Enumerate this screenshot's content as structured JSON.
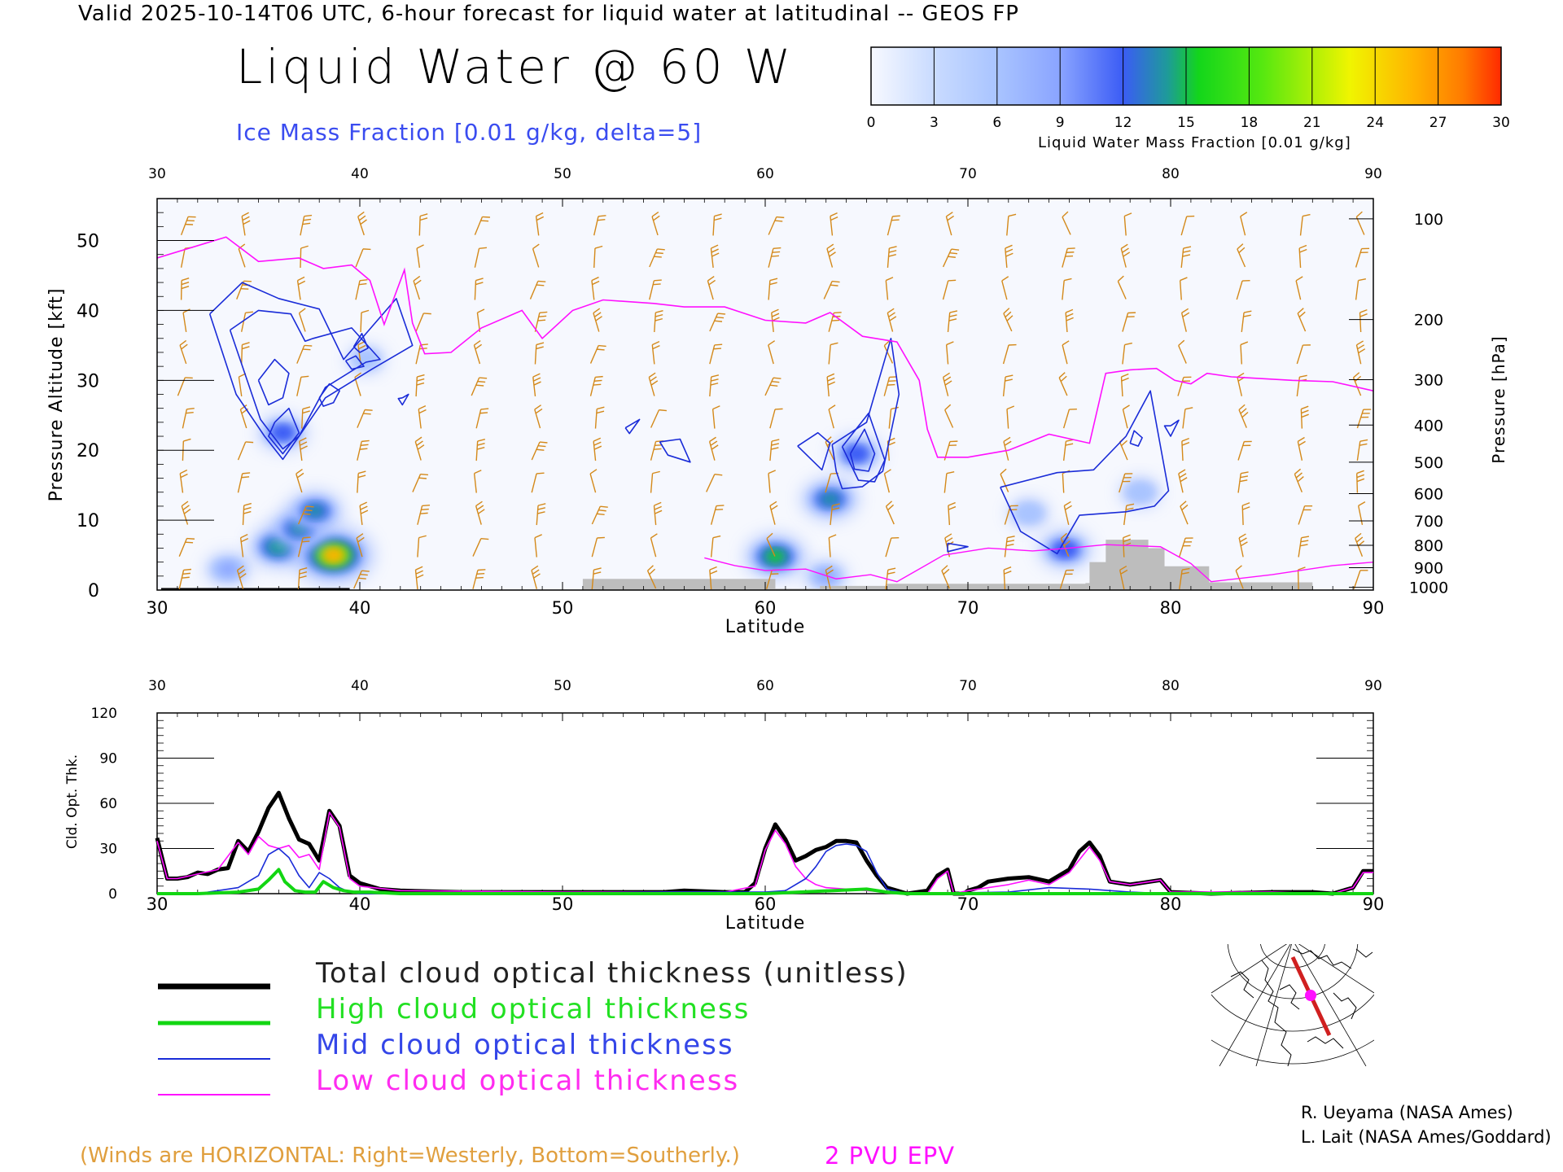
{
  "header": {
    "valid_line": "Valid 2025-10-14T06 UTC, 6-hour forecast for liquid water at latitudinal -- GEOS FP",
    "title": "Liquid Water @ 60 W",
    "subtitle": "Ice Mass Fraction [0.01 g/kg, delta=5]"
  },
  "colorbar": {
    "ticks": [
      "0",
      "3",
      "6",
      "9",
      "12",
      "15",
      "18",
      "21",
      "24",
      "27",
      "30"
    ],
    "label": "Liquid Water Mass Fraction [0.01 g/kg]",
    "colors": [
      "#f3f7ff",
      "#c9dbff",
      "#a9c4ff",
      "#8aa4ff",
      "#3b5cf5",
      "#1e9a9a",
      "#13d61b",
      "#55e810",
      "#f0f500",
      "#ffb400",
      "#ff6a00"
    ]
  },
  "colors": {
    "wind_barb": "#d4891a",
    "ice_contour": "#1a2cd8",
    "pvu": "#ff10ff",
    "terrain": "#bdbdbd",
    "total": "#000000",
    "high": "#12d612",
    "mid": "#1a2cd8",
    "low": "#ff10ff"
  },
  "chart_data": [
    {
      "type": "heatmap",
      "name": "cross-section",
      "xlabel": "Latitude",
      "ylabel": "Pressure Altitude [kft]",
      "y2label": "Pressure [hPa]",
      "xlim": [
        30,
        90
      ],
      "ylim": [
        0,
        56
      ],
      "x_ticks": [
        "30",
        "40",
        "50",
        "60",
        "70",
        "80",
        "90"
      ],
      "y_ticks": [
        "0",
        "10",
        "20",
        "30",
        "40",
        "50"
      ],
      "pressure_ticks": [
        {
          "label": "100",
          "kft": 53.1
        },
        {
          "label": "200",
          "kft": 38.7
        },
        {
          "label": "300",
          "kft": 30.1
        },
        {
          "label": "400",
          "kft": 23.6
        },
        {
          "label": "500",
          "kft": 18.3
        },
        {
          "label": "600",
          "kft": 13.8
        },
        {
          "label": "700",
          "kft": 9.9
        },
        {
          "label": "800",
          "kft": 6.4
        },
        {
          "label": "900",
          "kft": 3.2
        },
        {
          "label": "1000",
          "kft": 0.4
        }
      ],
      "liquid_water_blobs": [
        {
          "lat": 36.0,
          "kft": 6.2,
          "value": 16
        },
        {
          "lat": 38.7,
          "kft": 5.0,
          "value": 26
        },
        {
          "lat": 37.0,
          "kft": 8.8,
          "value": 15
        },
        {
          "lat": 37.8,
          "kft": 11.3,
          "value": 14
        },
        {
          "lat": 33.5,
          "kft": 3.0,
          "value": 9
        },
        {
          "lat": 36.2,
          "kft": 22.5,
          "value": 11
        },
        {
          "lat": 60.5,
          "kft": 4.8,
          "value": 17
        },
        {
          "lat": 63.2,
          "kft": 13.0,
          "value": 15
        },
        {
          "lat": 64.5,
          "kft": 19.5,
          "value": 12
        },
        {
          "lat": 74.8,
          "kft": 5.8,
          "value": 13
        },
        {
          "lat": 73.0,
          "kft": 11.0,
          "value": 7
        },
        {
          "lat": 78.5,
          "kft": 14.0,
          "value": 7
        },
        {
          "lat": 40.3,
          "kft": 33.0,
          "value": 6
        },
        {
          "lat": 63.0,
          "kft": 2.0,
          "value": 8
        }
      ],
      "terrain": [
        {
          "lat": 51.0,
          "kft": 1.6
        },
        {
          "lat": 55.2,
          "kft": 1.6
        },
        {
          "lat": 60.5,
          "kft": 0.2
        },
        {
          "lat": 62.7,
          "kft": 0.6
        },
        {
          "lat": 66.0,
          "kft": 0.9
        },
        {
          "lat": 75.8,
          "kft": 1.0
        },
        {
          "lat": 76.0,
          "kft": 4.0
        },
        {
          "lat": 76.8,
          "kft": 7.2
        },
        {
          "lat": 78.9,
          "kft": 6.0
        },
        {
          "lat": 79.7,
          "kft": 3.4
        },
        {
          "lat": 81.9,
          "kft": 1.1
        },
        {
          "lat": 87.0,
          "kft": 0.9
        }
      ],
      "pvu_2": {
        "lat": [
          30,
          33.4,
          35,
          37,
          38.2,
          39.6,
          40.5,
          41.2,
          42.2,
          42.6,
          43.2,
          44.5,
          46,
          48,
          49,
          50.5,
          52,
          54.5,
          56,
          58,
          60,
          62,
          63.2,
          64.8,
          66.5,
          67.6,
          68,
          68.5,
          70,
          72,
          74,
          76,
          76.8,
          78,
          79.3,
          80.2,
          81,
          81.8,
          83,
          86,
          88,
          90
        ],
        "kft": [
          47.5,
          50.5,
          47.0,
          47.5,
          46.0,
          46.5,
          44.3,
          38.0,
          45.8,
          38.2,
          33.8,
          34.0,
          37.5,
          40.0,
          36.0,
          40.0,
          41.5,
          41.0,
          40.5,
          40.5,
          38.6,
          38.2,
          39.7,
          36.3,
          35.5,
          30.0,
          23.0,
          19.0,
          19.0,
          20.0,
          22.3,
          21.0,
          31.0,
          31.5,
          31.7,
          30.0,
          29.5,
          31.0,
          30.5,
          30.0,
          29.8,
          28.5
        ]
      },
      "ice_contours_5": [
        {
          "lat": [
            32.6,
            34.2,
            36.0,
            38.0,
            39.2,
            41.8,
            42.6,
            40.6,
            38.3,
            37.0,
            36.2,
            35.3,
            33.9,
            32.6
          ],
          "kft": [
            39.5,
            44.0,
            41.7,
            40.2,
            33.0,
            41.7,
            35.0,
            31.6,
            27.5,
            22.0,
            18.7,
            22.0,
            28.0,
            39.5
          ]
        },
        {
          "lat": [
            63.3,
            65.0,
            66.2,
            66.6,
            65.8,
            64.8,
            63.8,
            63.5,
            63.3
          ],
          "kft": [
            20.8,
            24.0,
            36.0,
            28.0,
            17.0,
            14.8,
            14.5,
            17.0,
            20.8
          ]
        },
        {
          "lat": [
            71.6,
            74.4,
            76.2,
            77.8,
            79.0,
            79.9,
            79.2,
            77.8,
            75.5,
            74.4,
            72.6,
            71.6
          ],
          "kft": [
            14.7,
            16.8,
            17.2,
            22.0,
            28.5,
            14.2,
            12.0,
            11.2,
            10.7,
            5.2,
            8.4,
            14.7
          ]
        },
        {
          "lat": [
            61.6,
            62.6,
            63.2,
            62.8,
            61.6
          ],
          "kft": [
            20.6,
            22.5,
            21.0,
            17.2,
            20.6
          ]
        },
        {
          "lat": [
            54.8,
            55.8,
            56.3,
            55.2,
            54.8
          ],
          "kft": [
            21.2,
            21.6,
            18.3,
            19.3,
            21.2
          ]
        },
        {
          "lat": [
            53.1,
            53.8,
            53.3,
            53.1
          ],
          "kft": [
            23.2,
            24.4,
            22.4,
            23.2
          ]
        },
        {
          "lat": [
            69.0,
            70.0,
            69.0,
            69.0
          ],
          "kft": [
            6.7,
            6.2,
            5.5,
            6.7
          ]
        },
        {
          "lat": [
            80.0,
            80.4,
            80.0,
            79.7,
            80.0
          ],
          "kft": [
            23.5,
            24.3,
            22.0,
            23.5,
            23.5
          ]
        },
        {
          "lat": [
            42.1,
            42.4,
            42.1,
            41.9,
            42.1
          ],
          "kft": [
            27.5,
            28.0,
            26.5,
            27.4,
            27.5
          ]
        }
      ],
      "ice_contours_10": [
        {
          "lat": [
            33.6,
            35.0,
            36.6,
            37.3,
            37.7,
            39.6,
            41.0,
            40.3,
            38.3,
            37.0,
            36.2,
            35.1,
            33.6
          ],
          "kft": [
            37.2,
            40.0,
            39.5,
            35.6,
            36.0,
            37.5,
            33.0,
            32.6,
            29.0,
            22.0,
            20.2,
            24.4,
            37.2
          ]
        },
        {
          "lat": [
            63.8,
            65.1,
            65.9,
            65.4,
            64.6,
            63.8
          ],
          "kft": [
            20.5,
            25.3,
            18.6,
            15.5,
            15.7,
            20.5
          ]
        },
        {
          "lat": [
            78.0,
            78.2,
            78.6,
            78.4,
            78.0
          ],
          "kft": [
            21.0,
            22.8,
            21.8,
            20.6,
            21.0
          ]
        }
      ],
      "ice_contours_15": [
        {
          "lat": [
            35.0,
            35.8,
            36.5,
            36.2,
            35.5,
            35.0
          ],
          "kft": [
            30.0,
            33.0,
            31.0,
            27.5,
            26.5,
            30.0
          ]
        },
        {
          "lat": [
            38.0,
            38.5,
            39.0,
            38.7,
            38.2,
            38.0
          ],
          "kft": [
            27.5,
            29.5,
            28.5,
            26.8,
            26.3,
            27.5
          ]
        },
        {
          "lat": [
            39.7,
            40.1,
            40.4,
            40.0,
            39.7
          ],
          "kft": [
            34.8,
            36.7,
            34.6,
            34.0,
            34.8
          ]
        },
        {
          "lat": [
            35.8,
            36.5,
            37.0,
            36.2,
            35.5,
            35.8
          ],
          "kft": [
            24.0,
            26.0,
            22.5,
            19.5,
            22.0,
            24.0
          ]
        },
        {
          "lat": [
            64.2,
            64.9,
            65.4,
            65.1,
            64.4,
            64.2
          ],
          "kft": [
            19.5,
            23.0,
            19.5,
            17.0,
            17.3,
            19.5
          ]
        },
        {
          "lat": [
            39.3,
            39.8,
            40.2,
            39.6,
            39.3
          ],
          "kft": [
            32.8,
            33.5,
            32.0,
            31.6,
            32.8
          ]
        }
      ]
    },
    {
      "type": "line",
      "name": "cloud-optical-thickness",
      "xlabel": "Latitude",
      "ylabel": "Cld. Opt. Thk.",
      "xlim": [
        30,
        90
      ],
      "ylim": [
        0,
        120
      ],
      "x_ticks": [
        "30",
        "40",
        "50",
        "60",
        "70",
        "80",
        "90"
      ],
      "y_ticks": [
        "0",
        "30",
        "60",
        "90",
        "120"
      ],
      "series": [
        {
          "name": "Total cloud optical thickness (unitless)",
          "key": "total",
          "width": 5,
          "x": [
            30,
            30.5,
            31,
            31.5,
            32,
            32.5,
            33,
            33.5,
            34,
            34.5,
            35,
            35.5,
            36,
            36.5,
            37,
            37.5,
            38,
            38.5,
            39,
            39.5,
            40,
            41,
            42,
            45,
            50,
            55,
            56,
            58,
            59,
            59.5,
            60,
            60.5,
            61,
            61.5,
            62,
            62.5,
            63,
            63.5,
            64,
            64.5,
            65,
            65.5,
            66,
            66.5,
            67,
            68,
            68.5,
            69,
            69.3,
            69.8,
            70,
            70.5,
            71,
            72,
            73,
            74,
            75,
            75.5,
            76,
            76.5,
            77,
            77.5,
            78,
            79,
            79.5,
            80,
            82,
            85,
            87,
            88,
            89,
            89.5,
            90
          ],
          "y": [
            37,
            10,
            10,
            11,
            14,
            13,
            16,
            17,
            35,
            28,
            41,
            57,
            67,
            50,
            36,
            33,
            22,
            55,
            45,
            12,
            7,
            3,
            2,
            1,
            1,
            1,
            2,
            1,
            1,
            7,
            30,
            46,
            36,
            22,
            25,
            29,
            31,
            35,
            35,
            34,
            22,
            12,
            4,
            2,
            0,
            2,
            12,
            16,
            0,
            0,
            2,
            4,
            8,
            10,
            11,
            8,
            16,
            28,
            34,
            25,
            8,
            7,
            6,
            8,
            9,
            1,
            0,
            1,
            1,
            0,
            4,
            15,
            15
          ]
        },
        {
          "name": "High cloud optical thickness",
          "key": "high",
          "width": 4,
          "x": [
            30,
            32,
            34,
            35,
            35.5,
            36,
            36.3,
            36.8,
            37.3,
            37.8,
            38.2,
            38.7,
            39.2,
            39.7,
            40.5,
            42,
            50,
            60,
            65,
            66,
            67,
            70,
            75,
            80,
            90
          ],
          "y": [
            0,
            0,
            1,
            3,
            9,
            16,
            8,
            2,
            1,
            1,
            8,
            4,
            2,
            1,
            1,
            0,
            0,
            0,
            3,
            1,
            0,
            0,
            0,
            0,
            0
          ]
        },
        {
          "name": "Mid cloud optical thickness",
          "key": "mid",
          "width": 1.6,
          "x": [
            30,
            32,
            34,
            35,
            35.5,
            36,
            36.5,
            37,
            37.5,
            38,
            38.5,
            39,
            39.5,
            40,
            41,
            45,
            55,
            60,
            61,
            62,
            62.5,
            63,
            63.5,
            64,
            64.5,
            65,
            65.5,
            66,
            67,
            72,
            74,
            76,
            78,
            80,
            90
          ],
          "y": [
            0,
            0,
            4,
            12,
            26,
            30,
            24,
            12,
            4,
            14,
            10,
            4,
            1,
            0,
            0,
            0,
            1,
            1,
            2,
            10,
            18,
            28,
            32,
            33,
            32,
            28,
            14,
            3,
            0,
            1,
            4,
            3,
            1,
            0,
            0
          ]
        },
        {
          "name": "Low cloud optical thickness",
          "key": "low",
          "width": 1.6,
          "x": [
            30,
            30.5,
            31,
            32,
            33,
            34,
            34.5,
            35,
            35.5,
            36,
            36.5,
            37,
            37.5,
            38,
            38.5,
            39,
            39.5,
            40,
            42,
            50,
            58,
            59.5,
            60,
            60.5,
            61,
            61.5,
            62,
            62.5,
            63,
            64,
            65,
            66,
            68,
            68.5,
            69,
            69.3,
            70,
            72,
            73,
            74,
            75,
            76,
            76.5,
            77,
            78,
            79,
            79.5,
            80,
            85,
            88,
            89,
            89.5,
            90
          ],
          "y": [
            35,
            10,
            10,
            13,
            16,
            34,
            26,
            38,
            32,
            30,
            32,
            24,
            26,
            16,
            54,
            44,
            10,
            5,
            2,
            1,
            1,
            5,
            29,
            42,
            33,
            18,
            10,
            6,
            4,
            3,
            2,
            1,
            0,
            10,
            15,
            0,
            2,
            6,
            9,
            6,
            14,
            31,
            22,
            8,
            6,
            8,
            9,
            1,
            1,
            0,
            4,
            14,
            14
          ]
        }
      ]
    }
  ],
  "legend": {
    "total": "Total cloud optical thickness (unitless)",
    "high": "High cloud optical thickness",
    "mid": "Mid cloud optical thickness",
    "low": "Low cloud optical thickness"
  },
  "credits": {
    "line1": "R. Ueyama (NASA Ames)",
    "line2": "L. Lait (NASA Ames/Goddard)"
  },
  "footer": {
    "winds_note": "(Winds are HORIZONTAL: Right=Westerly, Bottom=Southerly.)",
    "pvu_note": "2 PVU EPV"
  }
}
